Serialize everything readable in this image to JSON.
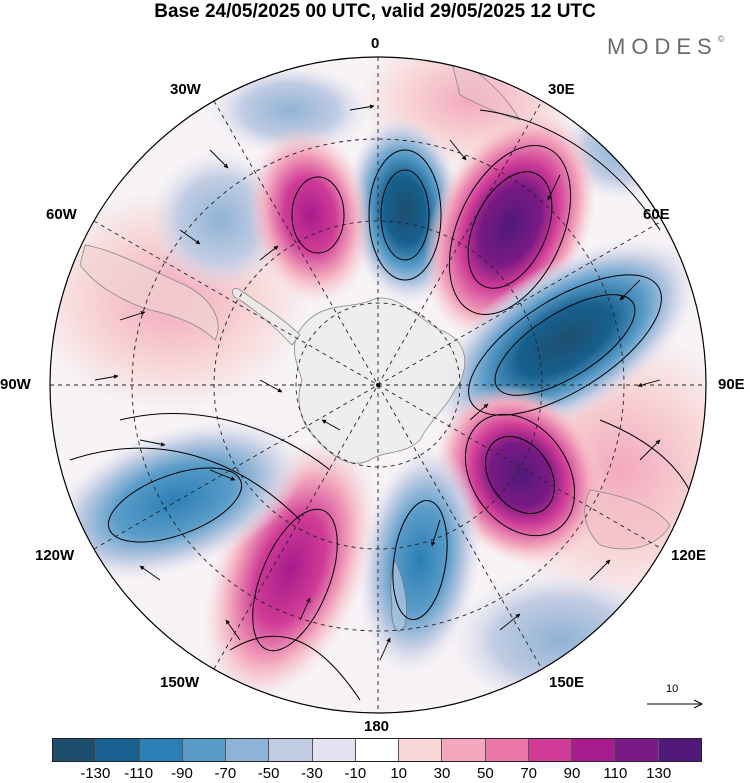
{
  "title": "Base 24/05/2025 00 UTC, valid 29/05/2025 12 UTC",
  "brand": "MODES",
  "brand_mark": "©",
  "longitude_labels": {
    "n0": "0",
    "e30": "30E",
    "e60": "60E",
    "e90": "90E",
    "e120": "120E",
    "e150": "150E",
    "s180": "180",
    "w150": "150W",
    "w120": "120W",
    "w90": "90W",
    "w60": "60W",
    "w30": "30W"
  },
  "reference_vector": {
    "label": "10"
  },
  "colorbar": {
    "colors": [
      "#1d4e6e",
      "#17608f",
      "#2b7fb6",
      "#5a9cc8",
      "#8fb3d6",
      "#c1cce3",
      "#e4e2f0",
      "#ffffff",
      "#f8d6d6",
      "#f3a8bd",
      "#eb77a8",
      "#cf3b96",
      "#a71b8c",
      "#7a1a84",
      "#50197a"
    ],
    "ticks": [
      "-130",
      "-110",
      "-90",
      "-70",
      "-50",
      "-30",
      "-10",
      "10",
      "30",
      "50",
      "70",
      "90",
      "110",
      "130"
    ]
  },
  "map": {
    "projection": "south-polar-stereographic",
    "field": "shaded anomaly with streamlines and wind vectors",
    "land_color": "#ececec"
  }
}
